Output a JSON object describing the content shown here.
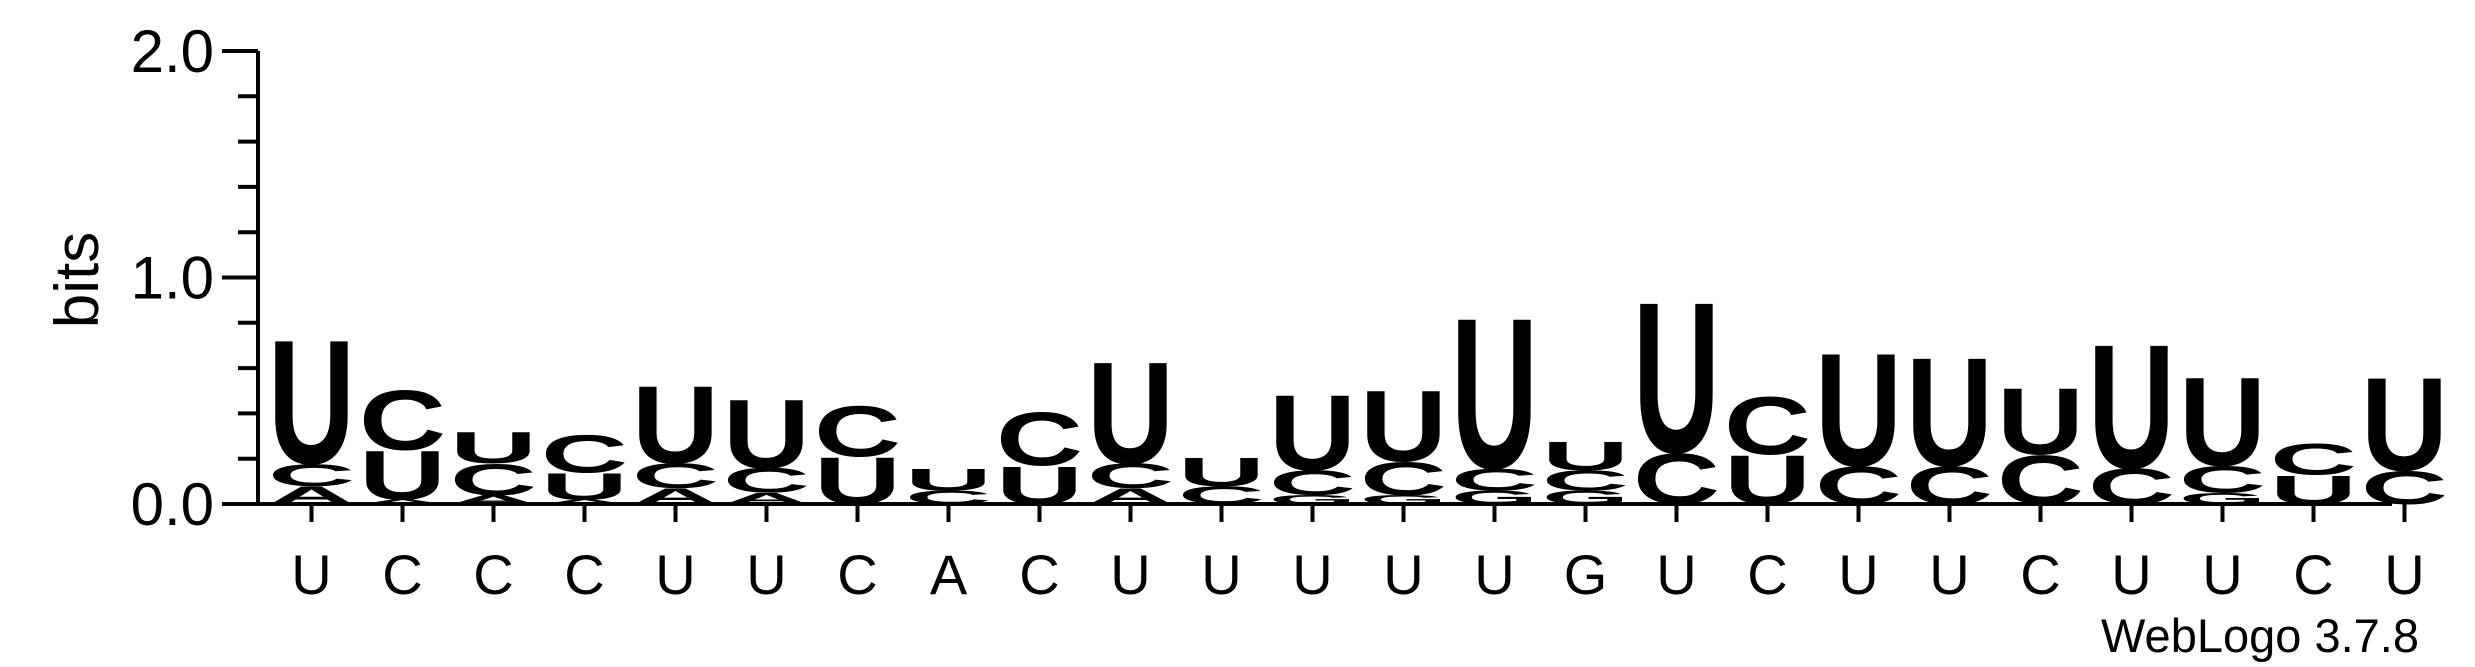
{
  "chart_data": {
    "type": "sequence-logo",
    "ylabel": "bits",
    "ylim": [
      0,
      2.0
    ],
    "yticks": [
      {
        "value": 0.0,
        "label": "0.0"
      },
      {
        "value": 1.0,
        "label": "1.0"
      },
      {
        "value": 2.0,
        "label": "2.0"
      }
    ],
    "yminor_step": 0.2,
    "categories": [
      "U",
      "C",
      "C",
      "C",
      "U",
      "U",
      "C",
      "A",
      "C",
      "U",
      "U",
      "U",
      "U",
      "U",
      "G",
      "U",
      "C",
      "U",
      "U",
      "C",
      "U",
      "U",
      "C",
      "U"
    ],
    "colors": {
      "U": "#f7941d",
      "C": "#0000ff",
      "A": "#f7941d",
      "G": "#0000ff"
    },
    "stacks": [
      [
        {
          "letter": "A",
          "bits": 0.08
        },
        {
          "letter": "C",
          "bits": 0.1
        },
        {
          "letter": "U",
          "bits": 0.56
        }
      ],
      [
        {
          "letter": "A",
          "bits": 0.02
        },
        {
          "letter": "U",
          "bits": 0.22
        },
        {
          "letter": "C",
          "bits": 0.27
        }
      ],
      [
        {
          "letter": "A",
          "bits": 0.04
        },
        {
          "letter": "C",
          "bits": 0.14
        },
        {
          "letter": "U",
          "bits": 0.14
        }
      ],
      [
        {
          "letter": "A",
          "bits": 0.02
        },
        {
          "letter": "U",
          "bits": 0.12
        },
        {
          "letter": "C",
          "bits": 0.17
        }
      ],
      [
        {
          "letter": "A",
          "bits": 0.07
        },
        {
          "letter": "C",
          "bits": 0.11
        },
        {
          "letter": "U",
          "bits": 0.35
        }
      ],
      [
        {
          "letter": "A",
          "bits": 0.05
        },
        {
          "letter": "C",
          "bits": 0.11
        },
        {
          "letter": "U",
          "bits": 0.31
        }
      ],
      [
        {
          "letter": "U",
          "bits": 0.21
        },
        {
          "letter": "C",
          "bits": 0.23
        }
      ],
      [
        {
          "letter": "C",
          "bits": 0.06
        },
        {
          "letter": "U",
          "bits": 0.1
        }
      ],
      [
        {
          "letter": "U",
          "bits": 0.17
        },
        {
          "letter": "C",
          "bits": 0.24
        }
      ],
      [
        {
          "letter": "A",
          "bits": 0.07
        },
        {
          "letter": "C",
          "bits": 0.11
        },
        {
          "letter": "U",
          "bits": 0.46
        }
      ],
      [
        {
          "letter": "C",
          "bits": 0.08
        },
        {
          "letter": "U",
          "bits": 0.13
        }
      ],
      [
        {
          "letter": "G",
          "bits": 0.04
        },
        {
          "letter": "C",
          "bits": 0.11
        },
        {
          "letter": "U",
          "bits": 0.34
        }
      ],
      [
        {
          "letter": "G",
          "bits": 0.04
        },
        {
          "letter": "C",
          "bits": 0.15
        },
        {
          "letter": "U",
          "bits": 0.32
        }
      ],
      [
        {
          "letter": "G",
          "bits": 0.06
        },
        {
          "letter": "C",
          "bits": 0.1
        },
        {
          "letter": "U",
          "bits": 0.68
        }
      ],
      [
        {
          "letter": "G",
          "bits": 0.06
        },
        {
          "letter": "C",
          "bits": 0.09
        },
        {
          "letter": "U",
          "bits": 0.13
        }
      ],
      [
        {
          "letter": "C",
          "bits": 0.23
        },
        {
          "letter": "U",
          "bits": 0.68
        }
      ],
      [
        {
          "letter": "U",
          "bits": 0.22
        },
        {
          "letter": "C",
          "bits": 0.26
        }
      ],
      [
        {
          "letter": "C",
          "bits": 0.17
        },
        {
          "letter": "U",
          "bits": 0.51
        }
      ],
      [
        {
          "letter": "C",
          "bits": 0.17
        },
        {
          "letter": "U",
          "bits": 0.49
        }
      ],
      [
        {
          "letter": "C",
          "bits": 0.22
        },
        {
          "letter": "U",
          "bits": 0.3
        }
      ],
      [
        {
          "letter": "C",
          "bits": 0.16
        },
        {
          "letter": "U",
          "bits": 0.56
        }
      ],
      [
        {
          "letter": "G",
          "bits": 0.05
        },
        {
          "letter": "C",
          "bits": 0.12
        },
        {
          "letter": "U",
          "bits": 0.4
        }
      ],
      [
        {
          "letter": "U",
          "bits": 0.13
        },
        {
          "letter": "C",
          "bits": 0.14
        }
      ],
      [
        {
          "letter": "C",
          "bits": 0.15
        },
        {
          "letter": "U",
          "bits": 0.42
        }
      ]
    ],
    "credit": "WebLogo 3.7.8"
  }
}
